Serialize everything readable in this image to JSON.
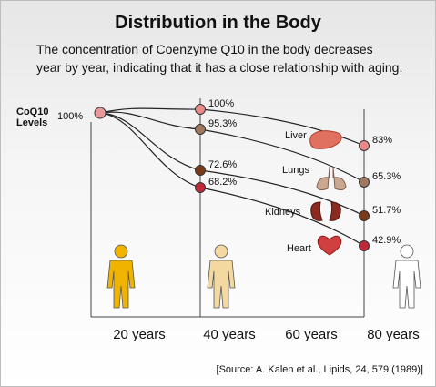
{
  "title": "Distribution in the Body",
  "subtitle_lines": [
    "The concentration of Coenzyme Q10 in the body decreases",
    "year by year, indicating that it has a close relationship with aging."
  ],
  "source": "[Source: A. Kalen et al., Lipids, 24, 579 (1989)]",
  "colors": {
    "line": "#222222",
    "organ": "#c0392b",
    "figure_20": "#f0b400",
    "figure_40": "#f3d9a0",
    "figure_80": "#ffffff"
  },
  "chart_data": {
    "type": "line",
    "ylabel": "CoQ10 Levels",
    "y_start_label": "100%",
    "x": [
      20,
      40,
      80
    ],
    "x_tick_labels": [
      "20 years",
      "40 years",
      "60 years",
      "80 years"
    ],
    "series": [
      {
        "name": "Heart",
        "values": [
          100,
          68.2,
          42.9
        ],
        "labels": [
          "",
          "68.2%",
          "42.9%"
        ],
        "color": "#c0283a",
        "icon": "heart-icon"
      },
      {
        "name": "Kidneys",
        "values": [
          100,
          72.6,
          51.7
        ],
        "labels": [
          "",
          "72.6%",
          "51.7%"
        ],
        "color": "#7a3a1a",
        "icon": "kidneys-icon"
      },
      {
        "name": "Lungs",
        "values": [
          100,
          95.3,
          65.3
        ],
        "labels": [
          "",
          "95.3%",
          "65.3%"
        ],
        "color": "#a07860",
        "icon": "lungs-icon"
      },
      {
        "name": "Liver",
        "values": [
          100,
          100,
          83
        ],
        "labels": [
          "",
          "100%",
          "83%"
        ],
        "color": "#e88a8a",
        "icon": "liver-icon"
      }
    ]
  }
}
